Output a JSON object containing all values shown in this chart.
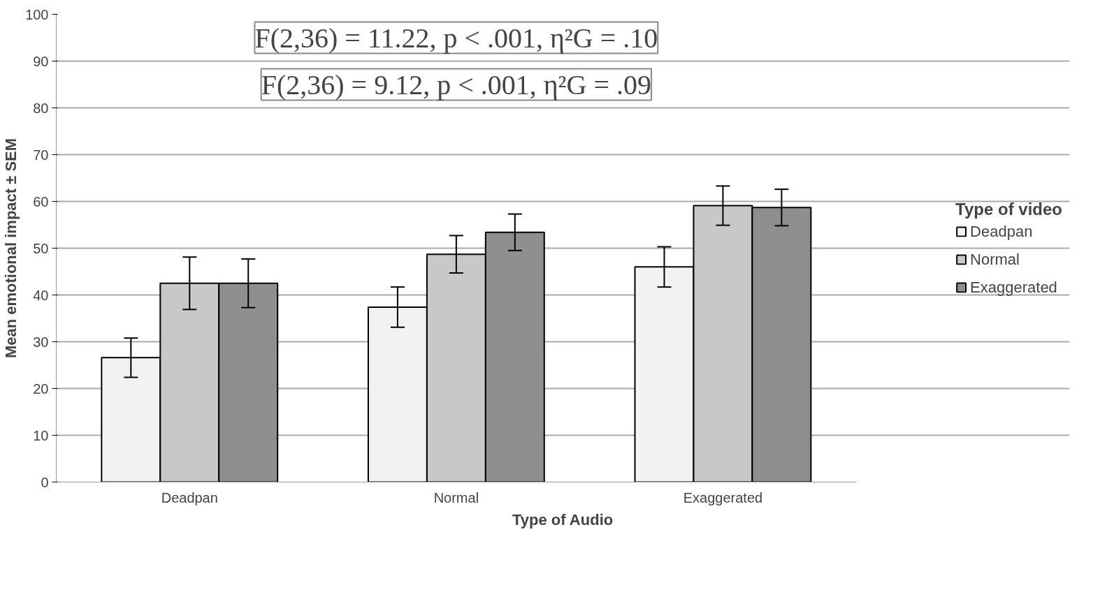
{
  "chart_data": {
    "type": "bar",
    "categories": [
      "Deadpan",
      "Normal",
      "Exaggerated"
    ],
    "xlabel": "Type of Audio",
    "ylabel": "Mean emotional impact ± SEM",
    "legend_title": "Type of video",
    "series": [
      {
        "name": "Deadpan",
        "color": "#f2f2f2",
        "values": [
          26.6,
          37.4,
          46.0
        ],
        "errors": [
          4.2,
          4.3,
          4.3
        ]
      },
      {
        "name": "Normal",
        "color": "#c8c8c8",
        "values": [
          42.5,
          48.7,
          59.1
        ],
        "errors": [
          5.6,
          4.0,
          4.2
        ]
      },
      {
        "name": "Exaggerated",
        "color": "#8f8f8f",
        "values": [
          42.5,
          53.4,
          58.7
        ],
        "errors": [
          5.2,
          3.9,
          3.9
        ]
      }
    ],
    "ylim": [
      0,
      100
    ],
    "yticks": [
      0,
      10,
      20,
      30,
      40,
      50,
      60,
      70,
      80,
      90,
      100
    ],
    "grid": "y",
    "legend": "right",
    "annotations": [
      "F(2,36) = 11.22, p < .001, η²G = .10",
      "F(2,36) = 9.12, p < .001, η²G = .09"
    ]
  }
}
